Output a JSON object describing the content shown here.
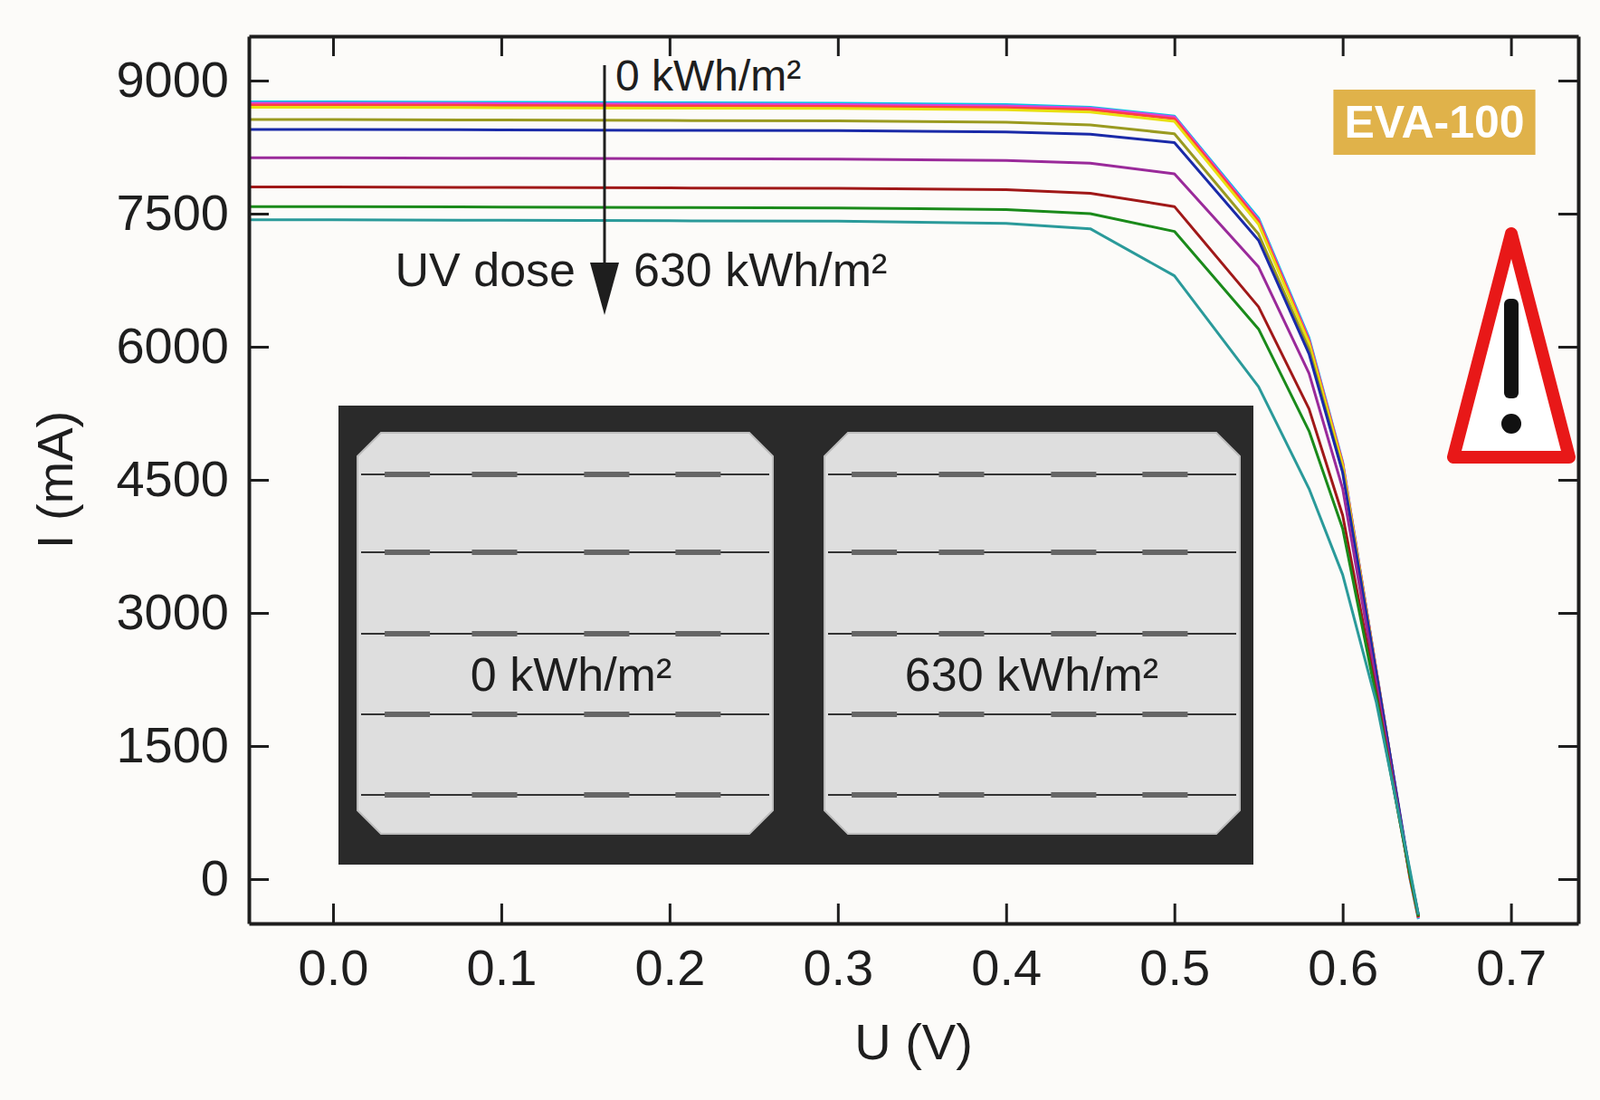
{
  "chart_data": {
    "type": "line",
    "x_label": "U (V)",
    "y_label": "I (mA)",
    "x": [
      -0.05,
      0,
      0.1,
      0.2,
      0.3,
      0.4,
      0.45,
      0.5,
      0.55,
      0.58,
      0.6,
      0.62,
      0.64,
      0.645
    ],
    "series": [
      {
        "color": "#00c8e8",
        "values": [
          8760,
          8760,
          8755,
          8750,
          8745,
          8730,
          8700,
          8600,
          7450,
          6100,
          4700,
          2350,
          0,
          -450
        ]
      },
      {
        "color": "#e040d8",
        "values": [
          8745,
          8745,
          8740,
          8735,
          8730,
          8715,
          8690,
          8590,
          7430,
          6080,
          4690,
          2350,
          10,
          -440
        ]
      },
      {
        "color": "#ff4040",
        "values": [
          8725,
          8725,
          8720,
          8715,
          8710,
          8695,
          8670,
          8570,
          7410,
          6060,
          4680,
          2340,
          20,
          -430
        ]
      },
      {
        "color": "#e8e010",
        "values": [
          8700,
          8700,
          8695,
          8690,
          8685,
          8670,
          8645,
          8540,
          7380,
          6040,
          4660,
          2330,
          20,
          -430
        ]
      },
      {
        "color": "#9a9a20",
        "values": [
          8560,
          8560,
          8555,
          8550,
          8545,
          8530,
          8500,
          8400,
          7270,
          5970,
          4600,
          2300,
          30,
          -420
        ]
      },
      {
        "color": "#1a2aa8",
        "values": [
          8450,
          8450,
          8445,
          8440,
          8435,
          8420,
          8395,
          8300,
          7200,
          5920,
          4580,
          2320,
          60,
          -400
        ]
      },
      {
        "color": "#9a2a9a",
        "values": [
          8130,
          8130,
          8125,
          8120,
          8115,
          8100,
          8070,
          7950,
          6900,
          5700,
          4400,
          2200,
          40,
          -420
        ]
      },
      {
        "color": "#a01818",
        "values": [
          7800,
          7800,
          7795,
          7790,
          7785,
          7770,
          7730,
          7580,
          6450,
          5300,
          4100,
          2100,
          30,
          -430
        ]
      },
      {
        "color": "#1a8a1a",
        "values": [
          7580,
          7580,
          7575,
          7570,
          7565,
          7545,
          7500,
          7300,
          6200,
          5050,
          3950,
          2050,
          50,
          -420
        ]
      },
      {
        "color": "#2a9a9a",
        "values": [
          7430,
          7430,
          7425,
          7420,
          7415,
          7390,
          7330,
          6800,
          5550,
          4400,
          3430,
          1990,
          100,
          -400
        ]
      }
    ],
    "xlim": [
      -0.05,
      0.74
    ],
    "ylim": [
      -500,
      9500
    ],
    "xticks": [
      {
        "value": 0,
        "label": "0.0"
      },
      {
        "value": 0.1,
        "label": "0.1"
      },
      {
        "value": 0.2,
        "label": "0.2"
      },
      {
        "value": 0.3,
        "label": "0.3"
      },
      {
        "value": 0.4,
        "label": "0.4"
      },
      {
        "value": 0.5,
        "label": "0.5"
      },
      {
        "value": 0.6,
        "label": "0.6"
      },
      {
        "value": 0.7,
        "label": "0.7"
      }
    ],
    "yticks": [
      0,
      1500,
      3000,
      4500,
      6000,
      7500,
      9000
    ],
    "grid": false,
    "line_style": "solid",
    "annotations": [
      "0 kWh/m²",
      "UV dose",
      "630 kWh/m²",
      "EVA-100",
      "0 kWh/m²",
      "630 kWh/m²"
    ]
  }
}
